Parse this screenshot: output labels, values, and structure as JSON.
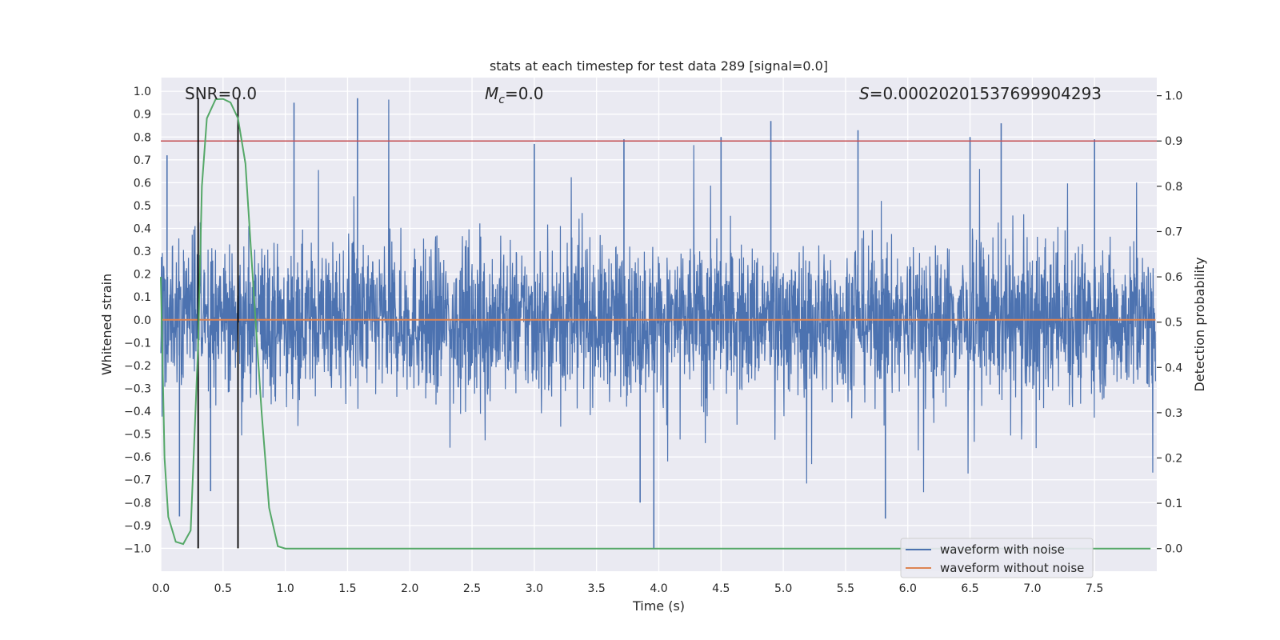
{
  "chart_data": {
    "type": "line",
    "title": "stats at each timestep for test data 289 [signal=0.0]",
    "xlabel": "Time (s)",
    "ylabel_left": "Whitened strain",
    "ylabel_right": "Detection probability",
    "xlim": [
      0.0,
      8.0
    ],
    "ylim_left": [
      -1.1,
      1.06
    ],
    "ylim_right": [
      -0.05,
      1.04
    ],
    "xticks": [
      0.0,
      0.5,
      1.0,
      1.5,
      2.0,
      2.5,
      3.0,
      3.5,
      4.0,
      4.5,
      5.0,
      5.5,
      6.0,
      6.5,
      7.0,
      7.5
    ],
    "xtick_labels": [
      "0.0",
      "0.5",
      "1.0",
      "1.5",
      "2.0",
      "2.5",
      "3.0",
      "3.5",
      "4.0",
      "4.5",
      "5.0",
      "5.5",
      "6.0",
      "6.5",
      "7.0",
      "7.5"
    ],
    "yticks_left": [
      1.0,
      0.9,
      0.8,
      0.7,
      0.6,
      0.5,
      0.4,
      0.3,
      0.2,
      0.1,
      0.0,
      -0.1,
      -0.2,
      -0.3,
      -0.4,
      -0.5,
      -0.6,
      -0.7,
      -0.8,
      -0.9,
      -1.0
    ],
    "ytick_labels_left": [
      "1.0",
      "0.9",
      "0.8",
      "0.7",
      "0.6",
      "0.5",
      "0.4",
      "0.3",
      "0.2",
      "0.1",
      "0.0",
      "−0.1",
      "−0.2",
      "−0.3",
      "−0.4",
      "−0.5",
      "−0.6",
      "−0.7",
      "−0.8",
      "−0.9",
      "−1.0"
    ],
    "yticks_right": [
      1.0,
      0.9,
      0.8,
      0.7,
      0.6,
      0.5,
      0.4,
      0.3,
      0.2,
      0.1,
      0.0
    ],
    "ytick_labels_right": [
      "1.0",
      "0.9",
      "0.8",
      "0.7",
      "0.6",
      "0.5",
      "0.4",
      "0.3",
      "0.2",
      "0.1",
      "0.0"
    ],
    "annotations": {
      "snr": "SNR=0.0",
      "mc_symbol": "M",
      "mc_sub": "c",
      "mc_value": "=0.0",
      "s_symbol": "S",
      "s_value": "=0.00020201537699904293"
    },
    "threshold": {
      "axis": "right",
      "value": 0.9,
      "color": "#c44e52"
    },
    "vlines": [
      0.3,
      0.62
    ],
    "series": [
      {
        "name": "waveform with noise",
        "axis": "left",
        "color": "#4c72b0",
        "kind": "noise",
        "summary": {
          "x_range": [
            0.0,
            7.99
          ],
          "typical_band": [
            -0.45,
            0.45
          ],
          "max": 0.97,
          "min": -1.0
        }
      },
      {
        "name": "waveform without noise",
        "axis": "left",
        "color": "#dd8452",
        "x": [
          0.0,
          7.99
        ],
        "y": [
          0.0,
          0.0
        ]
      },
      {
        "name": "detection probability",
        "axis": "right",
        "color": "#55a868",
        "x": [
          0.0,
          0.03,
          0.06,
          0.12,
          0.18,
          0.24,
          0.3,
          0.33,
          0.37,
          0.44,
          0.5,
          0.56,
          0.62,
          0.68,
          0.75,
          0.81,
          0.87,
          0.94,
          1.0,
          7.95
        ],
        "y": [
          0.6,
          0.2,
          0.07,
          0.015,
          0.01,
          0.04,
          0.45,
          0.8,
          0.95,
          0.992,
          0.993,
          0.985,
          0.95,
          0.85,
          0.55,
          0.3,
          0.09,
          0.005,
          0.0,
          0.0
        ]
      }
    ],
    "legend": {
      "location": "lower-right",
      "entries": [
        {
          "label": "waveform with noise",
          "color": "#4c72b0"
        },
        {
          "label": "waveform without noise",
          "color": "#dd8452"
        }
      ]
    },
    "colors": {
      "background": "#eaeaf2",
      "grid": "#ffffff",
      "vline": "#000000"
    }
  }
}
